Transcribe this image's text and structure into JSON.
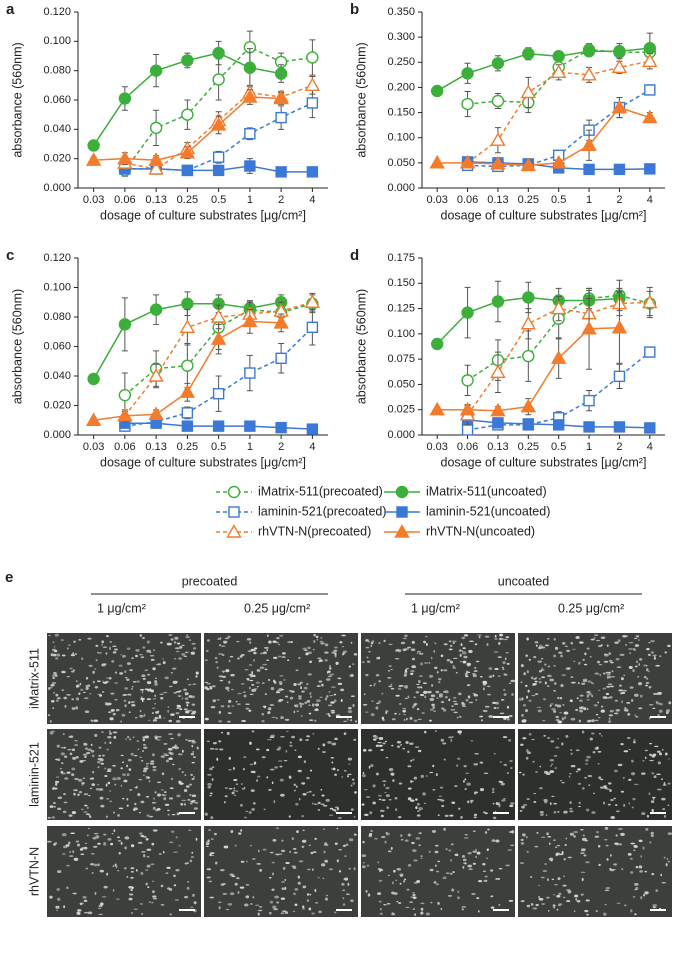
{
  "legend": [
    {
      "name": "iMatrix-511(precoated)",
      "color": "#3cae3a",
      "marker": "circle",
      "filled": false,
      "dashed": true
    },
    {
      "name": "iMatrix-511(uncoated)",
      "color": "#3cae3a",
      "marker": "circle",
      "filled": true,
      "dashed": false
    },
    {
      "name": "laminin-521(precoated)",
      "color": "#3b78d8",
      "marker": "square",
      "filled": false,
      "dashed": true
    },
    {
      "name": "laminin-521(uncoated)",
      "color": "#3b78d8",
      "marker": "square",
      "filled": true,
      "dashed": false
    },
    {
      "name": "rhVTN-N(precoated)",
      "color": "#f47b2b",
      "marker": "triangle",
      "filled": false,
      "dashed": true
    },
    {
      "name": "rhVTN-N(uncoated)",
      "color": "#f47b2b",
      "marker": "triangle",
      "filled": true,
      "dashed": false
    }
  ],
  "chart_data": [
    {
      "type": "line",
      "panel": "a",
      "xlabel": "dosage of culture substrates [μg/cm²]",
      "ylabel": "absorbance (560nm)",
      "categories": [
        "0.03",
        "0.06",
        "0.13",
        "0.25",
        "0.5",
        "1",
        "2",
        "4"
      ],
      "ylim": [
        0,
        0.12
      ],
      "yticks": [
        {
          "value": 0,
          "label": "0.000"
        },
        {
          "value": 0.02,
          "label": "0.020"
        },
        {
          "value": 0.04,
          "label": "0.040"
        },
        {
          "value": 0.06,
          "label": "0.060"
        },
        {
          "value": 0.08,
          "label": "0.080"
        },
        {
          "value": 0.1,
          "label": "0.100"
        },
        {
          "value": 0.12,
          "label": "0.120"
        }
      ],
      "series": [
        {
          "values": [
            null,
            0.012,
            0.041,
            0.05,
            0.074,
            0.096,
            0.086,
            0.089
          ],
          "errors": [
            null,
            0.004,
            0.012,
            0.01,
            0.014,
            0.011,
            0.006,
            0.012
          ]
        },
        {
          "values": [
            0.029,
            0.061,
            0.08,
            0.087,
            0.092,
            0.082,
            0.078,
            null
          ],
          "errors": [
            0.002,
            0.008,
            0.011,
            0.005,
            0.008,
            0.013,
            0.006,
            null
          ]
        },
        {
          "values": [
            null,
            0.013,
            0.013,
            0.012,
            0.021,
            0.037,
            0.048,
            0.058
          ],
          "errors": [
            null,
            0.003,
            0.002,
            0.003,
            0.004,
            0.004,
            0.008,
            0.01
          ]
        },
        {
          "values": [
            null,
            0.013,
            0.013,
            0.012,
            0.012,
            0.015,
            0.011,
            0.011
          ],
          "errors": [
            null,
            0.003,
            0.002,
            0.002,
            0.002,
            0.005,
            0.002,
            0.001
          ]
        },
        {
          "values": [
            null,
            0.017,
            0.013,
            0.027,
            0.046,
            0.065,
            0.062,
            0.07
          ],
          "errors": [
            null,
            0.003,
            0.003,
            0.004,
            0.006,
            0.005,
            0.004,
            0.006
          ]
        },
        {
          "values": [
            0.019,
            0.02,
            0.019,
            0.024,
            0.043,
            0.062,
            0.061,
            null
          ],
          "errors": [
            0.002,
            0.004,
            0.003,
            0.004,
            0.006,
            0.005,
            0.004,
            null
          ]
        }
      ]
    },
    {
      "type": "line",
      "panel": "b",
      "xlabel": "dosage of culture substrates [μg/cm²]",
      "ylabel": "absorbance (560nm)",
      "categories": [
        "0.03",
        "0.06",
        "0.13",
        "0.25",
        "0.5",
        "1",
        "2",
        "4"
      ],
      "ylim": [
        0,
        0.35
      ],
      "yticks": [
        {
          "value": 0,
          "label": "0.000"
        },
        {
          "value": 0.05,
          "label": "0.050"
        },
        {
          "value": 0.1,
          "label": "0.100"
        },
        {
          "value": 0.15,
          "label": "0.150"
        },
        {
          "value": 0.2,
          "label": "0.200"
        },
        {
          "value": 0.25,
          "label": "0.250"
        },
        {
          "value": 0.3,
          "label": "0.300"
        },
        {
          "value": 0.35,
          "label": "0.350"
        }
      ],
      "series": [
        {
          "values": [
            null,
            0.167,
            0.173,
            0.17,
            0.24,
            0.275,
            0.27,
            0.27
          ],
          "errors": [
            null,
            0.025,
            0.015,
            0.02,
            0.015,
            0.012,
            0.01,
            0.015
          ]
        },
        {
          "values": [
            0.193,
            0.228,
            0.248,
            0.267,
            0.262,
            0.272,
            0.272,
            0.278
          ],
          "errors": [
            0.005,
            0.02,
            0.015,
            0.012,
            0.008,
            0.01,
            0.015,
            0.03
          ]
        },
        {
          "values": [
            null,
            0.045,
            0.043,
            0.045,
            0.065,
            0.115,
            0.16,
            0.195
          ],
          "errors": [
            null,
            0.005,
            0.005,
            0.005,
            0.008,
            0.02,
            0.02,
            0.01
          ]
        },
        {
          "values": [
            null,
            0.052,
            0.05,
            0.048,
            0.04,
            0.037,
            0.037,
            0.038
          ],
          "errors": [
            null,
            0.005,
            0.005,
            0.005,
            0.004,
            0.003,
            0.003,
            0.003
          ]
        },
        {
          "values": [
            null,
            0.05,
            0.095,
            0.19,
            0.23,
            0.225,
            0.24,
            0.252
          ],
          "errors": [
            null,
            0.008,
            0.025,
            0.03,
            0.015,
            0.015,
            0.012,
            0.015
          ]
        },
        {
          "values": [
            0.05,
            0.05,
            0.048,
            0.045,
            0.05,
            0.085,
            0.16,
            0.14
          ],
          "errors": [
            0.004,
            0.005,
            0.005,
            0.005,
            0.006,
            0.03,
            0.02,
            0.01
          ]
        }
      ]
    },
    {
      "type": "line",
      "panel": "c",
      "xlabel": "dosage of culture substrates [μg/cm²]",
      "ylabel": "absorbance (560nm)",
      "categories": [
        "0.03",
        "0.06",
        "0.13",
        "0.25",
        "0.5",
        "1",
        "2",
        "4"
      ],
      "ylim": [
        0,
        0.12
      ],
      "yticks": [
        {
          "value": 0,
          "label": "0.000"
        },
        {
          "value": 0.02,
          "label": "0.020"
        },
        {
          "value": 0.04,
          "label": "0.040"
        },
        {
          "value": 0.06,
          "label": "0.060"
        },
        {
          "value": 0.08,
          "label": "0.080"
        },
        {
          "value": 0.1,
          "label": "0.100"
        },
        {
          "value": 0.12,
          "label": "0.120"
        }
      ],
      "series": [
        {
          "values": [
            null,
            0.027,
            0.045,
            0.047,
            0.073,
            0.085,
            0.083,
            0.089
          ],
          "errors": [
            null,
            0.015,
            0.012,
            0.015,
            0.015,
            0.006,
            0.006,
            0.006
          ]
        },
        {
          "values": [
            0.038,
            0.075,
            0.085,
            0.089,
            0.089,
            0.086,
            0.09,
            null
          ],
          "errors": [
            0.002,
            0.018,
            0.01,
            0.008,
            0.006,
            0.005,
            0.005,
            null
          ]
        },
        {
          "values": [
            null,
            0.006,
            0.009,
            0.015,
            0.028,
            0.042,
            0.052,
            0.073
          ],
          "errors": [
            null,
            0.002,
            0.003,
            0.004,
            0.012,
            0.012,
            0.01,
            0.012
          ]
        },
        {
          "values": [
            null,
            0.008,
            0.008,
            0.006,
            0.006,
            0.006,
            0.005,
            0.004
          ],
          "errors": [
            null,
            0.002,
            0.002,
            0.001,
            0.001,
            0.001,
            0.001,
            0.001
          ]
        },
        {
          "values": [
            null,
            0.013,
            0.04,
            0.073,
            0.08,
            0.082,
            0.084,
            0.09
          ],
          "errors": [
            null,
            0.004,
            0.008,
            0.012,
            0.008,
            0.008,
            0.006,
            0.006
          ]
        },
        {
          "values": [
            0.01,
            0.013,
            0.014,
            0.029,
            0.065,
            0.077,
            0.076,
            null
          ],
          "errors": [
            0.001,
            0.003,
            0.003,
            0.006,
            0.01,
            0.008,
            0.006,
            null
          ]
        }
      ]
    },
    {
      "type": "line",
      "panel": "d",
      "xlabel": "dosage of culture substrates [μg/cm²]",
      "ylabel": "absorbance (560nm)",
      "categories": [
        "0.03",
        "0.06",
        "0.13",
        "0.25",
        "0.5",
        "1",
        "2",
        "4"
      ],
      "ylim": [
        0,
        0.175
      ],
      "yticks": [
        {
          "value": 0,
          "label": "0.000"
        },
        {
          "value": 0.025,
          "label": "0.025"
        },
        {
          "value": 0.05,
          "label": "0.050"
        },
        {
          "value": 0.075,
          "label": "0.075"
        },
        {
          "value": 0.1,
          "label": "0.100"
        },
        {
          "value": 0.125,
          "label": "0.125"
        },
        {
          "value": 0.15,
          "label": "0.150"
        },
        {
          "value": 0.175,
          "label": "0.175"
        }
      ],
      "series": [
        {
          "values": [
            null,
            0.054,
            0.074,
            0.078,
            0.115,
            0.135,
            0.138,
            0.13
          ],
          "errors": [
            null,
            0.015,
            0.02,
            0.025,
            0.02,
            0.01,
            0.015,
            0.012
          ]
        },
        {
          "values": [
            0.09,
            0.121,
            0.132,
            0.136,
            0.133,
            0.133,
            0.135,
            null
          ],
          "errors": [
            0.003,
            0.025,
            0.02,
            0.015,
            0.012,
            0.01,
            0.01,
            null
          ]
        },
        {
          "values": [
            null,
            0.005,
            0.01,
            0.01,
            0.017,
            0.034,
            0.058,
            0.082
          ],
          "errors": [
            null,
            0.003,
            0.004,
            0.004,
            0.006,
            0.01,
            0.012,
            0.005
          ]
        },
        {
          "values": [
            null,
            0.015,
            0.012,
            0.011,
            0.01,
            0.008,
            0.008,
            0.007
          ],
          "errors": [
            null,
            0.004,
            0.003,
            0.003,
            0.002,
            0.002,
            0.002,
            0.002
          ]
        },
        {
          "values": [
            null,
            0.02,
            0.062,
            0.11,
            0.125,
            0.12,
            0.13,
            0.131
          ],
          "errors": [
            null,
            0.01,
            0.02,
            0.015,
            0.012,
            0.015,
            0.012,
            0.015
          ]
        },
        {
          "values": [
            0.025,
            0.025,
            0.024,
            0.028,
            0.076,
            0.105,
            0.106,
            null
          ],
          "errors": [
            0.002,
            0.004,
            0.004,
            0.008,
            0.02,
            0.04,
            0.035,
            null
          ]
        }
      ]
    }
  ],
  "panel_e": {
    "panel": "e",
    "groups": [
      "precoated",
      "uncoated"
    ],
    "doses": [
      "1 μg/cm²",
      "0.25 μg/cm²",
      "1 μg/cm²",
      "0.25 μg/cm²"
    ],
    "rows": [
      "iMatrix-511",
      "laminin-521",
      "rhVTN-N"
    ]
  }
}
